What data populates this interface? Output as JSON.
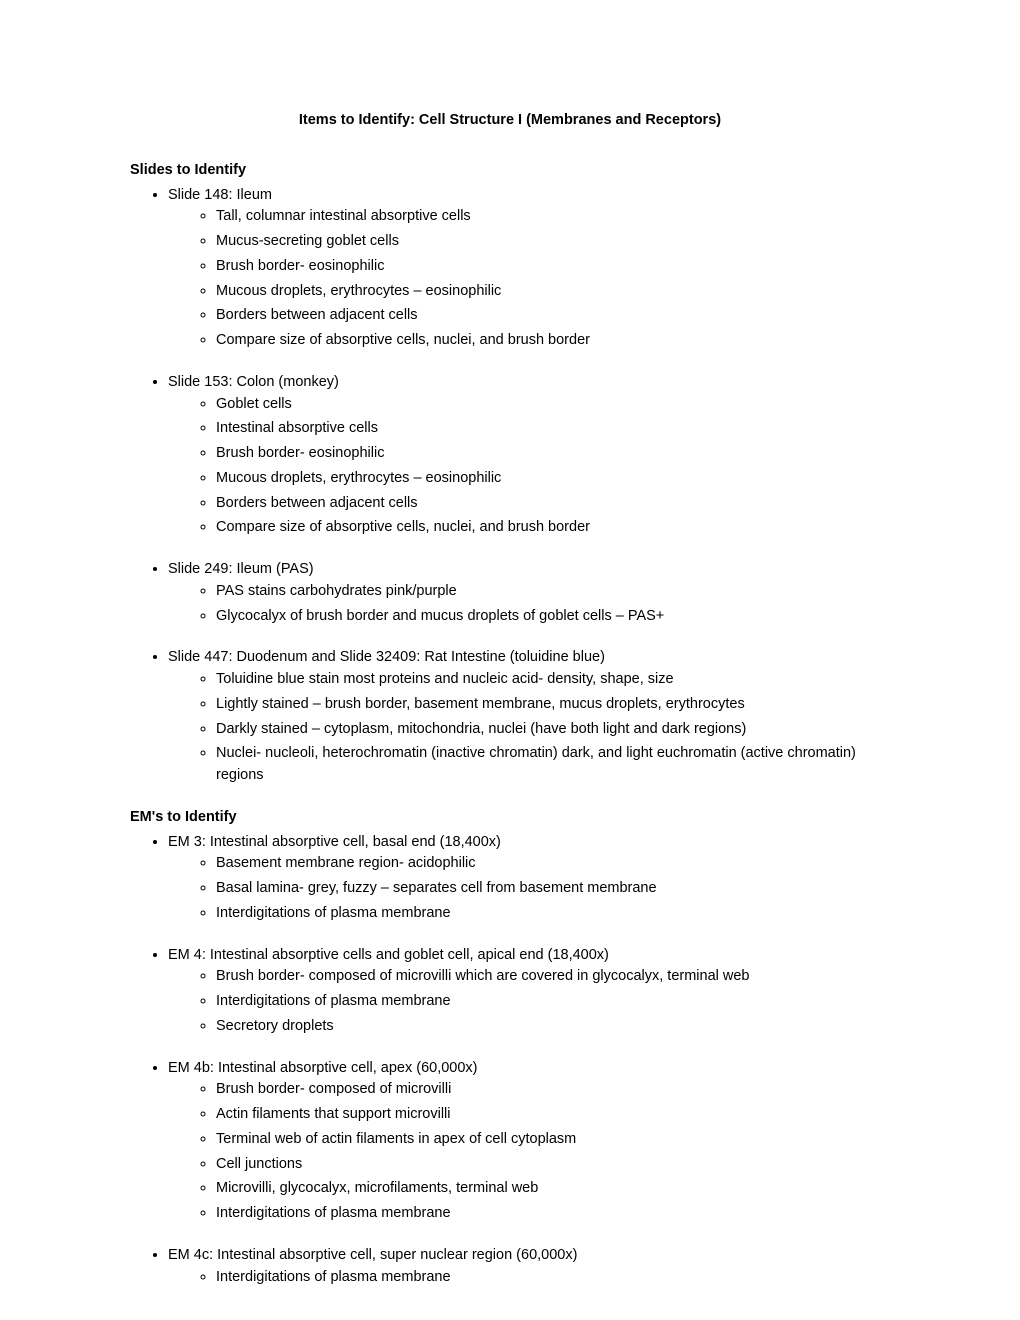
{
  "title": "Items to Identify: Cell Structure I (Membranes and Receptors)",
  "sections": [
    {
      "header": "Slides to Identify",
      "items": [
        {
          "label": "Slide 148: Ileum",
          "subitems": [
            "Tall, columnar intestinal absorptive cells",
            "Mucus-secreting goblet cells",
            "Brush border- eosinophilic",
            "Mucous droplets, erythrocytes – eosinophilic",
            "Borders between adjacent cells",
            "Compare size of absorptive cells, nuclei, and brush border"
          ]
        },
        {
          "label": "Slide 153: Colon (monkey)",
          "subitems": [
            "Goblet cells",
            "Intestinal absorptive cells",
            "Brush border- eosinophilic",
            "Mucous droplets, erythrocytes – eosinophilic",
            "Borders between adjacent cells",
            "Compare size of absorptive cells, nuclei, and brush border"
          ]
        },
        {
          "label": "Slide 249: Ileum (PAS)",
          "subitems": [
            "PAS stains carbohydrates pink/purple",
            "Glycocalyx of brush border and mucus droplets of goblet cells – PAS+"
          ]
        },
        {
          "label": "Slide 447: Duodenum and Slide 32409: Rat Intestine (toluidine blue)",
          "subitems": [
            "Toluidine blue stain most proteins and nucleic acid- density, shape, size",
            "Lightly stained – brush border, basement membrane, mucus droplets, erythrocytes",
            "Darkly stained – cytoplasm, mitochondria, nuclei (have both light and dark regions)",
            "Nuclei- nucleoli, heterochromatin (inactive chromatin) dark, and light euchromatin (active chromatin) regions"
          ]
        }
      ]
    },
    {
      "header": "EM's to Identify",
      "items": [
        {
          "label": "EM 3: Intestinal absorptive cell, basal end (18,400x)",
          "subitems": [
            "Basement membrane region- acidophilic",
            "Basal lamina- grey, fuzzy – separates cell from basement membrane",
            "Interdigitations of plasma membrane"
          ]
        },
        {
          "label": "EM 4: Intestinal absorptive cells and goblet cell, apical end (18,400x)",
          "subitems": [
            "Brush border- composed of microvilli which are covered in glycocalyx, terminal web",
            "Interdigitations of plasma membrane",
            "Secretory droplets"
          ]
        },
        {
          "label": "EM 4b: Intestinal absorptive cell, apex (60,000x)",
          "subitems": [
            "Brush border- composed of microvilli",
            "Actin filaments that support microvilli",
            "Terminal web of actin filaments in apex of cell cytoplasm",
            "Cell junctions",
            "Microvilli, glycocalyx, microfilaments, terminal web",
            "Interdigitations of plasma membrane"
          ]
        },
        {
          "label": "EM 4c: Intestinal absorptive cell, super nuclear region (60,000x)",
          "subitems": [
            "Interdigitations of plasma membrane"
          ]
        }
      ]
    }
  ]
}
